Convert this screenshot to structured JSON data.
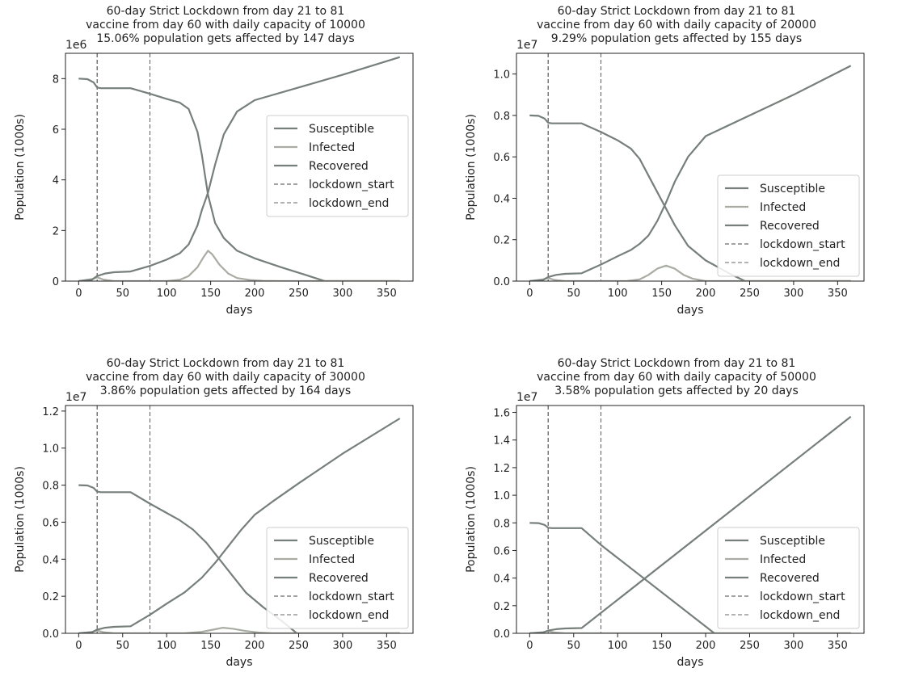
{
  "chart_data": [
    {
      "type": "line",
      "title": [
        "60-day Strict Lockdown from day 21 to 81",
        "vaccine from day 60 with daily capacity of 10000",
        "15.06% population gets affected by 147 days"
      ],
      "xlabel": "days",
      "ylabel": "Population (1000s)",
      "scale_label": "1e6",
      "xlim": [
        -15,
        380
      ],
      "ylim": [
        0,
        9.0
      ],
      "xticks": [
        0,
        50,
        100,
        150,
        200,
        250,
        300,
        350
      ],
      "yticks": [
        0,
        2,
        4,
        6,
        8
      ],
      "ytick_labels": [
        "0",
        "2",
        "4",
        "6",
        "8"
      ],
      "legend_position": "center-right",
      "vlines": [
        {
          "name": "lockdown_start",
          "x": 21,
          "color": "#444444"
        },
        {
          "name": "lockdown_end",
          "x": 81,
          "color": "#666666"
        }
      ],
      "series": [
        {
          "name": "Susceptible",
          "color": "#767f7a",
          "x": [
            0,
            10,
            17,
            21,
            25,
            40,
            59,
            81,
            100,
            115,
            125,
            135,
            140,
            147,
            155,
            165,
            180,
            200,
            230,
            260,
            280,
            300,
            365
          ],
          "values": [
            8.0,
            7.98,
            7.85,
            7.65,
            7.62,
            7.62,
            7.62,
            7.4,
            7.2,
            7.05,
            6.8,
            5.9,
            5.0,
            3.4,
            2.3,
            1.7,
            1.2,
            0.9,
            0.55,
            0.22,
            0.0,
            0.0,
            0.0
          ]
        },
        {
          "name": "Infected",
          "color": "#a8aca3",
          "x": [
            0,
            15,
            21,
            28,
            40,
            100,
            115,
            125,
            135,
            142,
            147,
            152,
            160,
            170,
            180,
            195,
            210,
            230,
            365
          ],
          "values": [
            0,
            0.08,
            0.15,
            0.06,
            0.0,
            0.0,
            0.05,
            0.2,
            0.55,
            0.95,
            1.2,
            1.05,
            0.65,
            0.3,
            0.12,
            0.04,
            0.01,
            0.0,
            0.0
          ]
        },
        {
          "name": "Recovered",
          "color": "#767f7a",
          "x": [
            0,
            15,
            21,
            30,
            40,
            59,
            81,
            100,
            115,
            125,
            135,
            140,
            147,
            155,
            165,
            180,
            200,
            250,
            300,
            365
          ],
          "values": [
            0,
            0.05,
            0.2,
            0.3,
            0.35,
            0.38,
            0.6,
            0.85,
            1.1,
            1.45,
            2.2,
            2.8,
            3.5,
            4.6,
            5.8,
            6.7,
            7.15,
            7.65,
            8.15,
            8.85
          ]
        }
      ]
    },
    {
      "type": "line",
      "title": [
        "60-day Strict Lockdown from day 21 to 81",
        "vaccine from day 60 with daily capacity of 20000",
        "9.29% population gets affected by 155 days"
      ],
      "xlabel": "days",
      "ylabel": "Population (1000s)",
      "scale_label": "1e7",
      "xlim": [
        -15,
        380
      ],
      "ylim": [
        0,
        1.1
      ],
      "xticks": [
        0,
        50,
        100,
        150,
        200,
        250,
        300,
        350
      ],
      "yticks": [
        0,
        0.2,
        0.4,
        0.6,
        0.8,
        1.0
      ],
      "ytick_labels": [
        "0.0",
        "0.2",
        "0.4",
        "0.6",
        "0.8",
        "1.0"
      ],
      "legend_position": "lower-right",
      "vlines": [
        {
          "name": "lockdown_start",
          "x": 21,
          "color": "#444444"
        },
        {
          "name": "lockdown_end",
          "x": 81,
          "color": "#666666"
        }
      ],
      "series": [
        {
          "name": "Susceptible",
          "color": "#767f7a",
          "x": [
            0,
            10,
            17,
            21,
            25,
            40,
            59,
            81,
            100,
            115,
            125,
            135,
            145,
            155,
            165,
            180,
            200,
            230,
            245,
            300,
            365
          ],
          "values": [
            0.8,
            0.798,
            0.785,
            0.765,
            0.762,
            0.762,
            0.762,
            0.72,
            0.68,
            0.64,
            0.59,
            0.51,
            0.43,
            0.35,
            0.27,
            0.17,
            0.1,
            0.03,
            0.0,
            0.0,
            0.0
          ]
        },
        {
          "name": "Infected",
          "color": "#a8aca3",
          "x": [
            0,
            15,
            21,
            28,
            40,
            110,
            125,
            135,
            145,
            155,
            165,
            175,
            185,
            200,
            365
          ],
          "values": [
            0,
            0.008,
            0.015,
            0.006,
            0.0,
            0.0,
            0.008,
            0.03,
            0.06,
            0.075,
            0.06,
            0.03,
            0.012,
            0.0,
            0.0
          ]
        },
        {
          "name": "Recovered",
          "color": "#767f7a",
          "x": [
            0,
            15,
            21,
            30,
            40,
            59,
            81,
            100,
            115,
            125,
            135,
            145,
            155,
            165,
            180,
            200,
            250,
            300,
            365
          ],
          "values": [
            0,
            0.005,
            0.02,
            0.03,
            0.035,
            0.038,
            0.08,
            0.12,
            0.15,
            0.18,
            0.22,
            0.29,
            0.38,
            0.48,
            0.6,
            0.7,
            0.8,
            0.9,
            1.04
          ]
        }
      ]
    },
    {
      "type": "line",
      "title": [
        "60-day Strict Lockdown from day 21 to 81",
        "vaccine from day 60 with daily capacity of 30000",
        "3.86% population gets affected by 164 days"
      ],
      "xlabel": "days",
      "ylabel": "Population (1000s)",
      "scale_label": "1e7",
      "xlim": [
        -15,
        380
      ],
      "ylim": [
        0,
        1.23
      ],
      "xticks": [
        0,
        50,
        100,
        150,
        200,
        250,
        300,
        350
      ],
      "yticks": [
        0,
        0.2,
        0.4,
        0.6,
        0.8,
        1.0,
        1.2
      ],
      "ytick_labels": [
        "0.0",
        "0.2",
        "0.4",
        "0.6",
        "0.8",
        "1.0",
        "1.2"
      ],
      "legend_position": "lower-right",
      "vlines": [
        {
          "name": "lockdown_start",
          "x": 21,
          "color": "#444444"
        },
        {
          "name": "lockdown_end",
          "x": 81,
          "color": "#666666"
        }
      ],
      "series": [
        {
          "name": "Susceptible",
          "color": "#767f7a",
          "x": [
            0,
            10,
            17,
            21,
            25,
            40,
            59,
            81,
            100,
            115,
            130,
            145,
            160,
            175,
            190,
            210,
            230,
            248,
            300,
            365
          ],
          "values": [
            0.8,
            0.798,
            0.785,
            0.765,
            0.762,
            0.762,
            0.762,
            0.7,
            0.65,
            0.61,
            0.56,
            0.49,
            0.4,
            0.31,
            0.22,
            0.14,
            0.07,
            0.0,
            0.0,
            0.0
          ]
        },
        {
          "name": "Infected",
          "color": "#a8aca3",
          "x": [
            0,
            15,
            21,
            28,
            40,
            120,
            140,
            155,
            164,
            175,
            190,
            205,
            220,
            365
          ],
          "values": [
            0,
            0.008,
            0.015,
            0.006,
            0.0,
            0.0,
            0.008,
            0.022,
            0.03,
            0.025,
            0.012,
            0.004,
            0.0,
            0.0
          ]
        },
        {
          "name": "Recovered",
          "color": "#767f7a",
          "x": [
            0,
            15,
            21,
            30,
            40,
            59,
            81,
            100,
            120,
            140,
            155,
            170,
            185,
            200,
            220,
            250,
            300,
            365
          ],
          "values": [
            0,
            0.005,
            0.02,
            0.03,
            0.035,
            0.038,
            0.1,
            0.16,
            0.22,
            0.3,
            0.38,
            0.47,
            0.56,
            0.64,
            0.71,
            0.81,
            0.97,
            1.16
          ]
        }
      ]
    },
    {
      "type": "line",
      "title": [
        "60-day Strict Lockdown from day 21 to 81",
        "vaccine from day 60 with daily capacity of 50000",
        "3.58% population gets affected by 20 days"
      ],
      "xlabel": "days",
      "ylabel": "Population (1000s)",
      "scale_label": "1e7",
      "xlim": [
        -15,
        380
      ],
      "ylim": [
        0,
        1.65
      ],
      "xticks": [
        0,
        50,
        100,
        150,
        200,
        250,
        300,
        350
      ],
      "yticks": [
        0,
        0.2,
        0.4,
        0.6,
        0.8,
        1.0,
        1.2,
        1.4,
        1.6
      ],
      "ytick_labels": [
        "0.0",
        "0.2",
        "0.4",
        "0.6",
        "0.8",
        "1.0",
        "1.2",
        "1.4",
        "1.6"
      ],
      "legend_position": "lower-right",
      "vlines": [
        {
          "name": "lockdown_start",
          "x": 21,
          "color": "#444444"
        },
        {
          "name": "lockdown_end",
          "x": 81,
          "color": "#666666"
        }
      ],
      "series": [
        {
          "name": "Susceptible",
          "color": "#767f7a",
          "x": [
            0,
            10,
            17,
            21,
            25,
            40,
            59,
            81,
            210,
            250,
            300,
            365
          ],
          "values": [
            0.8,
            0.798,
            0.785,
            0.765,
            0.762,
            0.762,
            0.762,
            0.64,
            0.0,
            0.0,
            0.0,
            0.0
          ]
        },
        {
          "name": "Infected",
          "color": "#a8aca3",
          "x": [
            0,
            15,
            21,
            28,
            40,
            365
          ],
          "values": [
            0,
            0.008,
            0.015,
            0.006,
            0.0,
            0.0
          ]
        },
        {
          "name": "Recovered",
          "color": "#767f7a",
          "x": [
            0,
            15,
            21,
            30,
            40,
            59,
            365
          ],
          "values": [
            0,
            0.005,
            0.02,
            0.03,
            0.035,
            0.038,
            1.57
          ]
        }
      ]
    }
  ]
}
